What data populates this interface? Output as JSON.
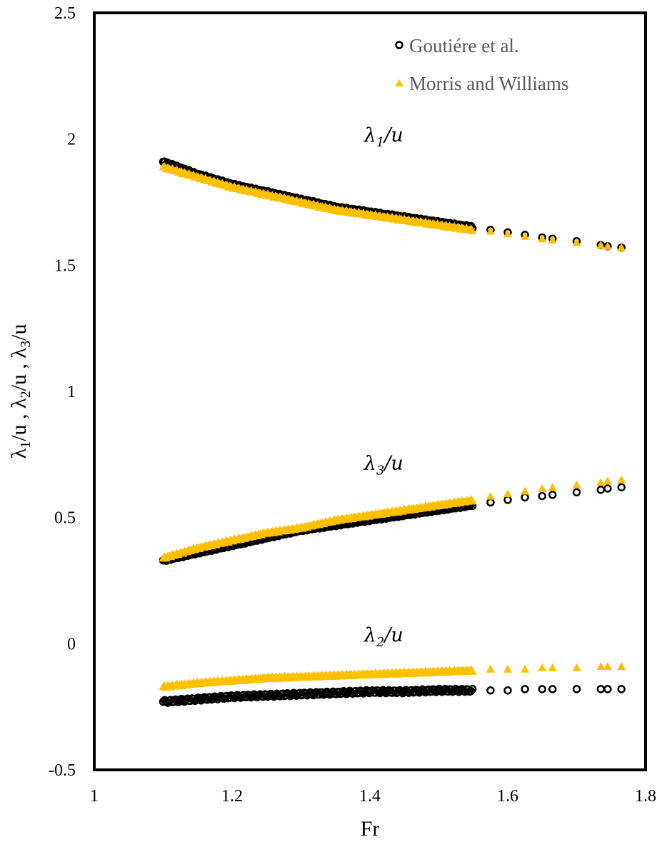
{
  "chart_data": {
    "type": "scatter",
    "title": "",
    "xlabel": "Fr",
    "ylabel": {
      "parts": [
        "λ",
        "1",
        "/u , λ",
        "2",
        "/u , λ",
        "3",
        "/u"
      ]
    },
    "xlim": [
      1,
      1.8
    ],
    "ylim": [
      -0.5,
      2.5
    ],
    "x_ticks": [
      "1",
      "1.2",
      "1.4",
      "1.6",
      "1.8"
    ],
    "y_ticks": [
      "-0.5",
      "0",
      "0.5",
      "1",
      "1.5",
      "2",
      "2.5"
    ],
    "x_tick_values": [
      1,
      1.2,
      1.4,
      1.6,
      1.8
    ],
    "y_tick_values": [
      -0.5,
      0,
      0.5,
      1,
      1.5,
      2,
      2.5
    ],
    "grid": false,
    "legend_position": "top-right",
    "annotations": [
      {
        "base": "λ",
        "sub": "1",
        "rest": "/u",
        "x": 1.42,
        "y": 1.99
      },
      {
        "base": "λ",
        "sub": "3",
        "rest": "/u",
        "x": 1.42,
        "y": 0.69
      },
      {
        "base": "λ",
        "sub": "2",
        "rest": "/u",
        "x": 1.42,
        "y": 0.01
      }
    ],
    "series": [
      {
        "name": "Goutiére et al.",
        "marker": "circle",
        "color": "#000000",
        "groups": [
          {
            "label": "λ1/u",
            "x": [
              1.1,
              1.15,
              1.2,
              1.25,
              1.3,
              1.35,
              1.4,
              1.45,
              1.5,
              1.55,
              1.575,
              1.6,
              1.625,
              1.65,
              1.665,
              1.7,
              1.735,
              1.745,
              1.765
            ],
            "y": [
              1.91,
              1.86,
              1.82,
              1.79,
              1.76,
              1.73,
              1.71,
              1.69,
              1.67,
              1.65,
              1.64,
              1.63,
              1.62,
              1.61,
              1.605,
              1.595,
              1.58,
              1.575,
              1.57
            ]
          },
          {
            "label": "λ3/u",
            "x": [
              1.1,
              1.15,
              1.2,
              1.25,
              1.3,
              1.35,
              1.4,
              1.45,
              1.5,
              1.55,
              1.575,
              1.6,
              1.625,
              1.65,
              1.665,
              1.7,
              1.735,
              1.745,
              1.765
            ],
            "y": [
              0.33,
              0.36,
              0.39,
              0.42,
              0.45,
              0.47,
              0.49,
              0.51,
              0.53,
              0.55,
              0.56,
              0.57,
              0.58,
              0.585,
              0.59,
              0.6,
              0.61,
              0.615,
              0.62
            ]
          },
          {
            "label": "λ2/u",
            "x": [
              1.1,
              1.15,
              1.2,
              1.25,
              1.3,
              1.35,
              1.4,
              1.45,
              1.5,
              1.55,
              1.575,
              1.6,
              1.625,
              1.65,
              1.665,
              1.7,
              1.735,
              1.745,
              1.765
            ],
            "y": [
              -0.23,
              -0.22,
              -0.21,
              -0.205,
              -0.2,
              -0.195,
              -0.19,
              -0.19,
              -0.185,
              -0.185,
              -0.185,
              -0.185,
              -0.18,
              -0.18,
              -0.18,
              -0.18,
              -0.18,
              -0.18,
              -0.18
            ]
          }
        ]
      },
      {
        "name": "Morris and Williams",
        "marker": "triangle",
        "color": "#FFC000",
        "groups": [
          {
            "label": "λ1/u",
            "x": [
              1.1,
              1.15,
              1.2,
              1.25,
              1.3,
              1.35,
              1.4,
              1.45,
              1.5,
              1.55,
              1.575,
              1.6,
              1.625,
              1.65,
              1.665,
              1.7,
              1.735,
              1.745,
              1.765
            ],
            "y": [
              1.89,
              1.85,
              1.81,
              1.78,
              1.75,
              1.72,
              1.7,
              1.68,
              1.66,
              1.64,
              1.635,
              1.625,
              1.615,
              1.605,
              1.6,
              1.59,
              1.58,
              1.575,
              1.57
            ]
          },
          {
            "label": "λ3/u",
            "x": [
              1.1,
              1.15,
              1.2,
              1.25,
              1.3,
              1.35,
              1.4,
              1.45,
              1.5,
              1.55,
              1.575,
              1.6,
              1.625,
              1.65,
              1.665,
              1.7,
              1.735,
              1.745,
              1.765
            ],
            "y": [
              0.34,
              0.38,
              0.41,
              0.44,
              0.46,
              0.49,
              0.51,
              0.53,
              0.55,
              0.57,
              0.585,
              0.595,
              0.605,
              0.615,
              0.62,
              0.63,
              0.64,
              0.645,
              0.65
            ]
          },
          {
            "label": "λ2/u",
            "x": [
              1.1,
              1.15,
              1.2,
              1.25,
              1.3,
              1.35,
              1.4,
              1.45,
              1.5,
              1.55,
              1.575,
              1.6,
              1.625,
              1.65,
              1.665,
              1.7,
              1.735,
              1.745,
              1.765
            ],
            "y": [
              -0.17,
              -0.155,
              -0.145,
              -0.135,
              -0.13,
              -0.125,
              -0.12,
              -0.115,
              -0.11,
              -0.105,
              -0.1,
              -0.1,
              -0.1,
              -0.095,
              -0.095,
              -0.095,
              -0.09,
              -0.09,
              -0.09
            ]
          }
        ]
      }
    ]
  }
}
